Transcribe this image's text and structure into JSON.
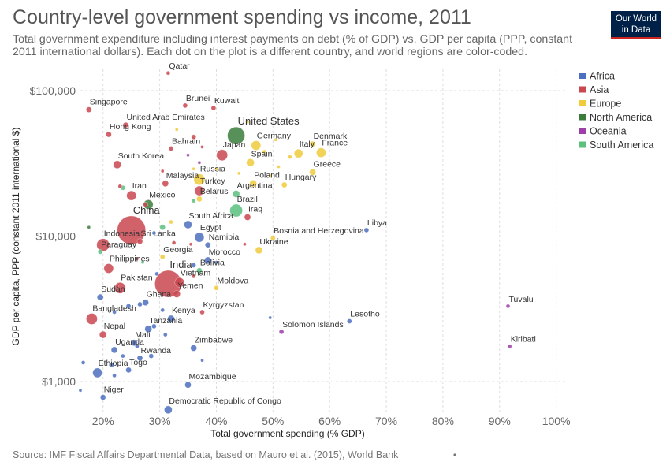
{
  "header": {
    "title": "Country-level government spending vs income, 2011",
    "subtitle": "Total government expenditure including interest payments on debt (% of GDP) vs. GDP per capita (PPP, constant 2011 international dollars). Each dot on the plot is a different country, and world regions are color-coded.",
    "logo_line1": "Our World",
    "logo_line2": "in Data"
  },
  "footer": {
    "source": "Source: IMF Fiscal Affairs Departmental Data, based on Mauro et al. (2015), World Bank"
  },
  "chart_data": {
    "type": "scatter",
    "title": "Country-level government spending vs income, 2011",
    "xlabel": "Total government spending (% GDP)",
    "ylabel": "GDP per capita, PPP (constant 2011 international $)",
    "x_scale": "linear",
    "y_scale": "log",
    "xlim": [
      16,
      102
    ],
    "ylim": [
      600,
      140000
    ],
    "x_ticks": [
      20,
      30,
      40,
      50,
      60,
      70,
      80,
      90,
      100
    ],
    "x_tick_labels": [
      "20%",
      "30%",
      "40%",
      "50%",
      "60%",
      "70%",
      "80%",
      "90%",
      "100%"
    ],
    "y_ticks": [
      1000,
      10000,
      100000
    ],
    "y_tick_labels": [
      "$1,000",
      "$10,000",
      "$100,000"
    ],
    "grid": true,
    "legend_position": "right",
    "regions": [
      {
        "name": "Africa",
        "color": "#4c6fbf"
      },
      {
        "name": "Asia",
        "color": "#c9474f"
      },
      {
        "name": "Europe",
        "color": "#f0cb3c"
      },
      {
        "name": "North America",
        "color": "#3b7c3c"
      },
      {
        "name": "Oceania",
        "color": "#9c3fa8"
      },
      {
        "name": "South America",
        "color": "#5bbf7f"
      }
    ],
    "labeled_points": [
      {
        "label": "Qatar",
        "region": "Asia",
        "x": 31.5,
        "y": 132000,
        "size": 2.5
      },
      {
        "label": "Brunei",
        "region": "Asia",
        "x": 34.5,
        "y": 79000,
        "size": 3
      },
      {
        "label": "Kuwait",
        "region": "Asia",
        "x": 39.5,
        "y": 76000,
        "size": 3
      },
      {
        "label": "Singapore",
        "region": "Asia",
        "x": 17.5,
        "y": 74000,
        "size": 3.5
      },
      {
        "label": "United Arab Emirates",
        "region": "Asia",
        "x": 24,
        "y": 58000,
        "size": 3.5
      },
      {
        "label": "Hong Kong",
        "region": "Asia",
        "x": 21,
        "y": 50000,
        "size": 3.5
      },
      {
        "label": "United States",
        "region": "North America",
        "x": 43.5,
        "y": 49000,
        "size": 11
      },
      {
        "label": "Denmark",
        "region": "Europe",
        "x": 57,
        "y": 43000,
        "size": 3.5
      },
      {
        "label": "Germany",
        "region": "Europe",
        "x": 47,
        "y": 42000,
        "size": 6
      },
      {
        "label": "Bahrain",
        "region": "Asia",
        "x": 32,
        "y": 40000,
        "size": 3
      },
      {
        "label": "Italy",
        "region": "Europe",
        "x": 54.5,
        "y": 37000,
        "size": 5.5
      },
      {
        "label": "France",
        "region": "Europe",
        "x": 58.5,
        "y": 37500,
        "size": 6
      },
      {
        "label": "Japan",
        "region": "Asia",
        "x": 41,
        "y": 36000,
        "size": 7
      },
      {
        "label": "Spain",
        "region": "Europe",
        "x": 46,
        "y": 32000,
        "size": 5
      },
      {
        "label": "South Korea",
        "region": "Asia",
        "x": 22.5,
        "y": 31000,
        "size": 5
      },
      {
        "label": "Greece",
        "region": "Europe",
        "x": 57,
        "y": 27500,
        "size": 4
      },
      {
        "label": "Russia",
        "region": "Europe",
        "x": 37,
        "y": 24500,
        "size": 7
      },
      {
        "label": "Malaysia",
        "region": "Asia",
        "x": 31,
        "y": 23000,
        "size": 4
      },
      {
        "label": "Poland",
        "region": "Europe",
        "x": 46.5,
        "y": 23000,
        "size": 4.5
      },
      {
        "label": "Hungary",
        "region": "Europe",
        "x": 52,
        "y": 22500,
        "size": 3.5
      },
      {
        "label": "Turkey",
        "region": "Asia",
        "x": 37,
        "y": 20500,
        "size": 6
      },
      {
        "label": "Argentina",
        "region": "South America",
        "x": 43.5,
        "y": 19500,
        "size": 4.5
      },
      {
        "label": "Iran",
        "region": "Asia",
        "x": 25,
        "y": 19000,
        "size": 6
      },
      {
        "label": "Belarus",
        "region": "Europe",
        "x": 37,
        "y": 18000,
        "size": 3.5
      },
      {
        "label": "Mexico",
        "region": "North America",
        "x": 28,
        "y": 16500,
        "size": 6
      },
      {
        "label": "Brazil",
        "region": "South America",
        "x": 43.5,
        "y": 15000,
        "size": 8
      },
      {
        "label": "Iraq",
        "region": "Asia",
        "x": 45.5,
        "y": 13500,
        "size": 4
      },
      {
        "label": "China",
        "region": "Asia",
        "x": 25,
        "y": 11000,
        "size": 18
      },
      {
        "label": "South Africa",
        "region": "Africa",
        "x": 35,
        "y": 12000,
        "size": 5
      },
      {
        "label": "Libya",
        "region": "Africa",
        "x": 66.5,
        "y": 11000,
        "size": 3
      },
      {
        "label": "Indonesia",
        "region": "Asia",
        "x": 20,
        "y": 8700,
        "size": 8
      },
      {
        "label": "Sri Lanka",
        "region": "Asia",
        "x": 26.5,
        "y": 9200,
        "size": 3.5
      },
      {
        "label": "Egypt",
        "region": "Africa",
        "x": 37,
        "y": 9800,
        "size": 6
      },
      {
        "label": "Bosnia and Herzegovina",
        "region": "Europe",
        "x": 50,
        "y": 9700,
        "size": 3
      },
      {
        "label": "Namibia",
        "region": "Africa",
        "x": 38.5,
        "y": 8700,
        "size": 3.5
      },
      {
        "label": "Ukraine",
        "region": "Europe",
        "x": 47.5,
        "y": 8000,
        "size": 4.5
      },
      {
        "label": "Paraguay",
        "region": "South America",
        "x": 19.5,
        "y": 7800,
        "size": 3
      },
      {
        "label": "Georgia",
        "region": "Europe",
        "x": 30.5,
        "y": 7200,
        "size": 3
      },
      {
        "label": "Morocco",
        "region": "Africa",
        "x": 38.5,
        "y": 6800,
        "size": 4.5
      },
      {
        "label": "Philippines",
        "region": "Asia",
        "x": 21,
        "y": 6000,
        "size": 6
      },
      {
        "label": "India",
        "region": "Asia",
        "x": 31.5,
        "y": 4700,
        "size": 17
      },
      {
        "label": "Bolivia",
        "region": "South America",
        "x": 37,
        "y": 5800,
        "size": 3.5
      },
      {
        "label": "Vietnam",
        "region": "Asia",
        "x": 33.5,
        "y": 4800,
        "size": 6
      },
      {
        "label": "Pakistan",
        "region": "Asia",
        "x": 23,
        "y": 4400,
        "size": 7
      },
      {
        "label": "Moldova",
        "region": "Europe",
        "x": 40,
        "y": 4400,
        "size": 3
      },
      {
        "label": "Yemen",
        "region": "Asia",
        "x": 33,
        "y": 4000,
        "size": 4.5
      },
      {
        "label": "Sudan",
        "region": "Africa",
        "x": 19.5,
        "y": 3800,
        "size": 4
      },
      {
        "label": "Ghana",
        "region": "Africa",
        "x": 27.5,
        "y": 3500,
        "size": 4
      },
      {
        "label": "Kyrgyzstan",
        "region": "Asia",
        "x": 37.5,
        "y": 3000,
        "size": 3
      },
      {
        "label": "Bangladesh",
        "region": "Asia",
        "x": 18,
        "y": 2700,
        "size": 7
      },
      {
        "label": "Kenya",
        "region": "Africa",
        "x": 32,
        "y": 2700,
        "size": 4.5
      },
      {
        "label": "Tuvalu",
        "region": "Oceania",
        "x": 91.5,
        "y": 3300,
        "size": 2.5
      },
      {
        "label": "Lesotho",
        "region": "Africa",
        "x": 63.5,
        "y": 2600,
        "size": 3
      },
      {
        "label": "Solomon Islands",
        "region": "Oceania",
        "x": 51.5,
        "y": 2200,
        "size": 3
      },
      {
        "label": "Tanzania",
        "region": "Africa",
        "x": 28,
        "y": 2300,
        "size": 4.5
      },
      {
        "label": "Nepal",
        "region": "Asia",
        "x": 20,
        "y": 2100,
        "size": 4.5
      },
      {
        "label": "Mali",
        "region": "Africa",
        "x": 25.5,
        "y": 1850,
        "size": 4
      },
      {
        "label": "Uganda",
        "region": "Africa",
        "x": 22,
        "y": 1650,
        "size": 4
      },
      {
        "label": "Kiribati",
        "region": "Oceania",
        "x": 91.8,
        "y": 1750,
        "size": 2.5
      },
      {
        "label": "Zimbabwe",
        "region": "Africa",
        "x": 36,
        "y": 1700,
        "size": 4
      },
      {
        "label": "Rwanda",
        "region": "Africa",
        "x": 26.5,
        "y": 1450,
        "size": 3.5
      },
      {
        "label": "Ethiopia",
        "region": "Africa",
        "x": 19,
        "y": 1150,
        "size": 6
      },
      {
        "label": "Togo",
        "region": "Africa",
        "x": 24.5,
        "y": 1200,
        "size": 3.5
      },
      {
        "label": "Mozambique",
        "region": "Africa",
        "x": 35,
        "y": 950,
        "size": 4
      },
      {
        "label": "Niger",
        "region": "Africa",
        "x": 20,
        "y": 780,
        "size": 3.5
      },
      {
        "label": "Democratic Republic of Congo",
        "region": "Africa",
        "x": 31.5,
        "y": 640,
        "size": 5
      }
    ],
    "unlabeled_points": [
      {
        "region": "Asia",
        "x": 30.5,
        "y": 28000,
        "size": 2
      },
      {
        "region": "Europe",
        "x": 36,
        "y": 29000,
        "size": 2
      },
      {
        "region": "Europe",
        "x": 40,
        "y": 29000,
        "size": 2
      },
      {
        "region": "Europe",
        "x": 44,
        "y": 27000,
        "size": 2
      },
      {
        "region": "Europe",
        "x": 49.5,
        "y": 26000,
        "size": 2
      },
      {
        "region": "Europe",
        "x": 51,
        "y": 30000,
        "size": 2
      },
      {
        "region": "Europe",
        "x": 53,
        "y": 35000,
        "size": 2.5
      },
      {
        "region": "Europe",
        "x": 48.5,
        "y": 38000,
        "size": 2.5
      },
      {
        "region": "Europe",
        "x": 50.5,
        "y": 46000,
        "size": 2
      },
      {
        "region": "Europe",
        "x": 33,
        "y": 54000,
        "size": 2
      },
      {
        "region": "Europe",
        "x": 45.5,
        "y": 61000,
        "size": 2
      },
      {
        "region": "Asia",
        "x": 37.5,
        "y": 41000,
        "size": 2
      },
      {
        "region": "Asia",
        "x": 36,
        "y": 48000,
        "size": 3
      },
      {
        "region": "Oceania",
        "x": 35,
        "y": 36000,
        "size": 2
      },
      {
        "region": "Oceania",
        "x": 37,
        "y": 32000,
        "size": 2
      },
      {
        "region": "Asia",
        "x": 23,
        "y": 22000,
        "size": 2.5
      },
      {
        "region": "South America",
        "x": 23.5,
        "y": 21500,
        "size": 3
      },
      {
        "region": "Asia",
        "x": 27.5,
        "y": 16500,
        "size": 3
      },
      {
        "region": "North America",
        "x": 17.5,
        "y": 11500,
        "size": 2
      },
      {
        "region": "South America",
        "x": 30.5,
        "y": 11500,
        "size": 3.5
      },
      {
        "region": "Europe",
        "x": 32,
        "y": 12500,
        "size": 2.5
      },
      {
        "region": "South America",
        "x": 36,
        "y": 17500,
        "size": 2.5
      },
      {
        "region": "Asia",
        "x": 32.5,
        "y": 9000,
        "size": 2.5
      },
      {
        "region": "Asia",
        "x": 35.5,
        "y": 8800,
        "size": 2
      },
      {
        "region": "Asia",
        "x": 45,
        "y": 8800,
        "size": 2
      },
      {
        "region": "Africa",
        "x": 29,
        "y": 10500,
        "size": 2.5
      },
      {
        "region": "South America",
        "x": 27,
        "y": 6600,
        "size": 2
      },
      {
        "region": "Asia",
        "x": 26,
        "y": 7000,
        "size": 2
      },
      {
        "region": "Africa",
        "x": 36,
        "y": 6300,
        "size": 3
      },
      {
        "region": "Africa",
        "x": 40,
        "y": 6600,
        "size": 2
      },
      {
        "region": "Asia",
        "x": 36,
        "y": 5300,
        "size": 2.5
      },
      {
        "region": "Africa",
        "x": 29.5,
        "y": 5500,
        "size": 2.5
      },
      {
        "region": "Asia",
        "x": 22.5,
        "y": 4500,
        "size": 2
      },
      {
        "region": "Africa",
        "x": 24.5,
        "y": 3300,
        "size": 3
      },
      {
        "region": "Africa",
        "x": 26.5,
        "y": 3400,
        "size": 3
      },
      {
        "region": "Africa",
        "x": 30.5,
        "y": 3100,
        "size": 2.5
      },
      {
        "region": "Africa",
        "x": 22,
        "y": 3000,
        "size": 2.5
      },
      {
        "region": "Africa",
        "x": 29,
        "y": 2400,
        "size": 3
      },
      {
        "region": "Africa",
        "x": 31,
        "y": 2100,
        "size": 2.5
      },
      {
        "region": "Africa",
        "x": 23.5,
        "y": 1500,
        "size": 2.5
      },
      {
        "region": "Africa",
        "x": 26,
        "y": 1750,
        "size": 2.5
      },
      {
        "region": "Africa",
        "x": 21.5,
        "y": 1300,
        "size": 3
      },
      {
        "region": "Africa",
        "x": 16.5,
        "y": 1350,
        "size": 2.5
      },
      {
        "region": "Africa",
        "x": 22,
        "y": 1100,
        "size": 2.5
      },
      {
        "region": "Africa",
        "x": 28.5,
        "y": 1500,
        "size": 3
      },
      {
        "region": "Africa",
        "x": 16,
        "y": 870,
        "size": 2
      },
      {
        "region": "Africa",
        "x": 37.5,
        "y": 1400,
        "size": 2
      },
      {
        "region": "Africa",
        "x": 49.5,
        "y": 2750,
        "size": 2
      }
    ]
  }
}
